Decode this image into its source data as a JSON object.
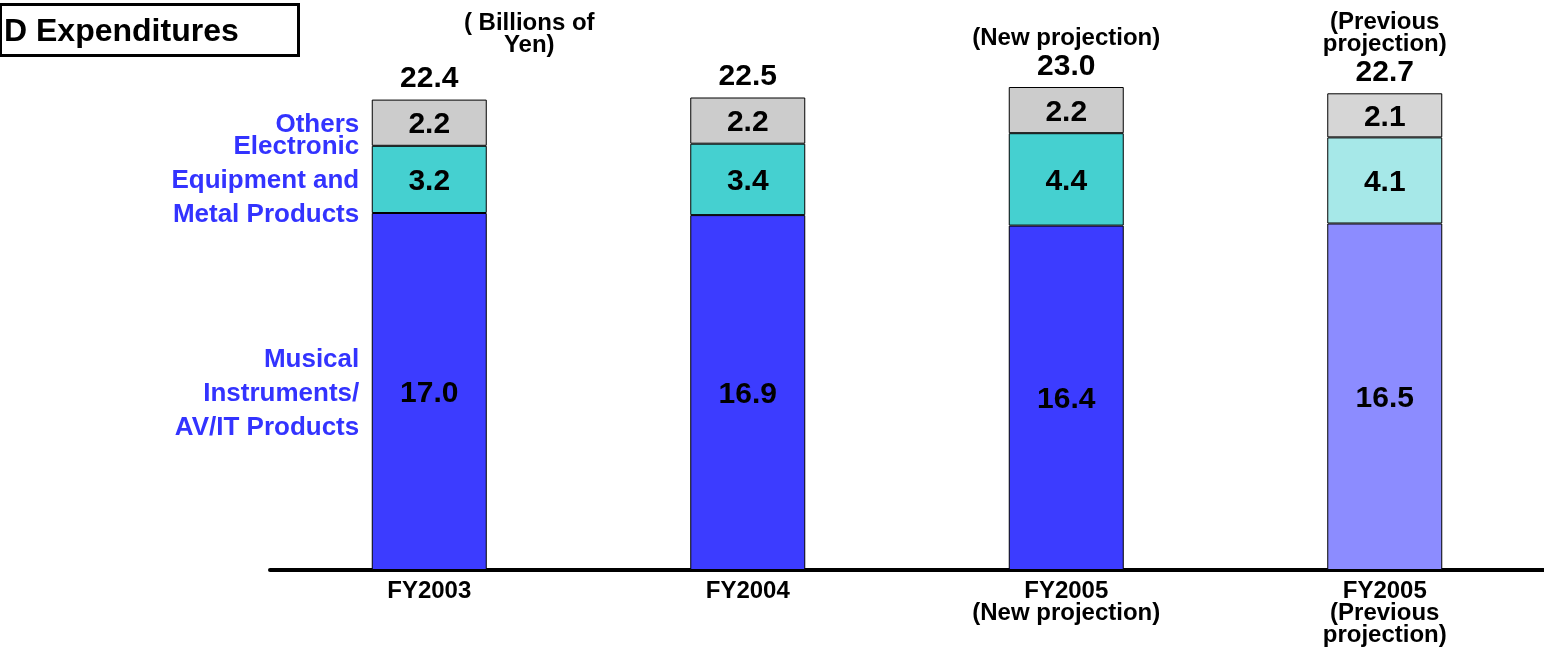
{
  "chart_data": {
    "type": "bar",
    "title": "D Expenditures",
    "stacked": true,
    "tick_labels": "x",
    "categories": [
      "FY2003",
      "FY2004",
      "FY2005\n(New projection)",
      "FY2005\n(Previous\nprojection)"
    ],
    "series": [
      {
        "name": "Musical\nInstruments/\nAV/IT Products",
        "colors": [
          "#3c3cff",
          "#3c3cff",
          "#3c3cff",
          "#8c8cff"
        ],
        "values": [
          17.0,
          16.9,
          16.4,
          16.5
        ],
        "value_labels": [
          "17.0",
          "16.9",
          "16.4",
          "16.5"
        ]
      },
      {
        "name": "Electronic\nEquipment and\nMetal Products",
        "colors": [
          "#45d0d0",
          "#45d0d0",
          "#45d0d0",
          "#a6e8e8"
        ],
        "values": [
          3.2,
          3.4,
          4.4,
          4.1
        ],
        "value_labels": [
          "3.2",
          "3.4",
          "4.4",
          "4.1"
        ]
      },
      {
        "name": "Others",
        "colors": [
          "#cccccc",
          "#cccccc",
          "#cccccc",
          "#d6d6d6"
        ],
        "values": [
          2.2,
          2.2,
          2.2,
          2.1
        ],
        "value_labels": [
          "2.2",
          "2.2",
          "2.2",
          "2.1"
        ]
      }
    ],
    "totals": [
      "22.4",
      "22.5",
      "23.0",
      "22.7"
    ],
    "annotations": [
      "( Billions of\nYen)",
      "(New projection)",
      "(Previous\nprojection)"
    ]
  }
}
